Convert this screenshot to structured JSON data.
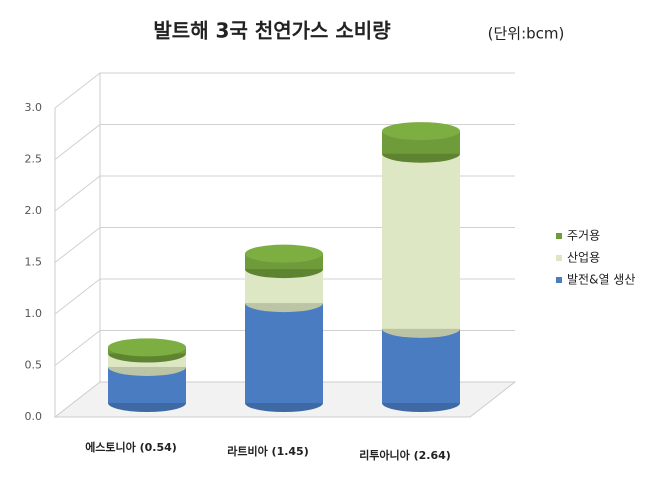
{
  "chart_data": {
    "type": "bar3d-stacked",
    "title": "발트해 3국 천연가스 소비량",
    "subtitle": "(단위:bcm)",
    "categories": [
      "에스토니아 (0.54)",
      "라트비아 (1.45)",
      "리투아니아 (2.64)"
    ],
    "series": [
      {
        "name": "발전&열 생산",
        "color": "#4a7cc2",
        "values": [
          0.35,
          0.97,
          0.72
        ]
      },
      {
        "name": "산업용",
        "color": "#dde7c3",
        "values": [
          0.13,
          0.33,
          1.7
        ]
      },
      {
        "name": "주거용",
        "color": "#6f9b3b",
        "values": [
          0.06,
          0.15,
          0.22
        ]
      }
    ],
    "ylim": [
      0,
      3
    ],
    "yticks": [
      {
        "value": 0,
        "label": "0.0"
      },
      0.5,
      {
        "value": 1,
        "label": "1.0"
      },
      1.5,
      {
        "value": 2,
        "label": "2.0"
      },
      2.5,
      {
        "value": 3,
        "label": "3.0"
      }
    ],
    "grid": true,
    "legend": "right"
  }
}
